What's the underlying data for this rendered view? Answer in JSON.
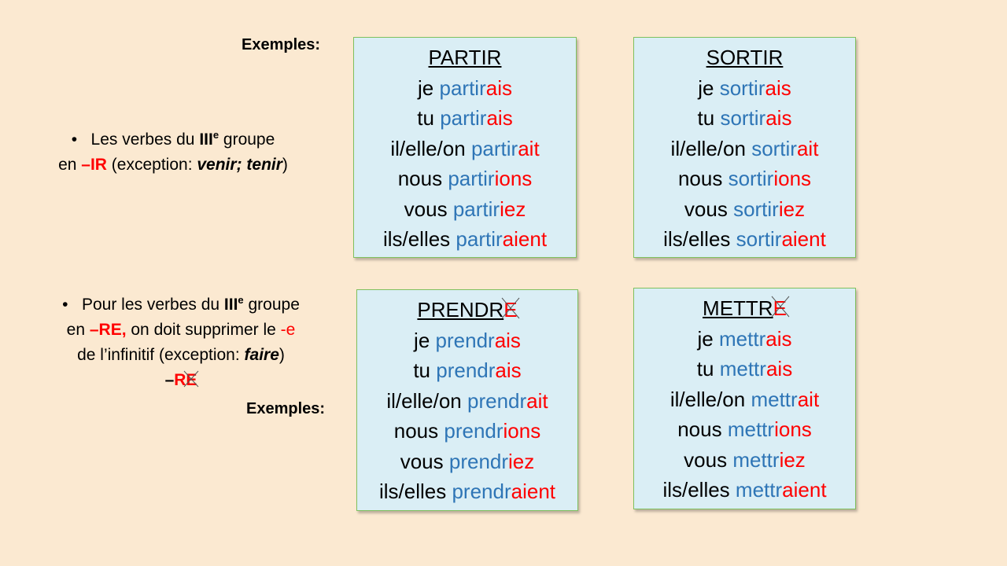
{
  "intro": [
    {
      "runs": [
        "Les verbes du ",
        "III",
        "e",
        " groupe",
        "en ",
        "–IR",
        " (exception: ",
        "venir; tenir",
        ")"
      ]
    },
    {
      "runs": [
        "Pour les verbes du ",
        "III",
        "e",
        " groupe",
        "en ",
        "–RE,",
        " on doit supprimer le ",
        "-e",
        "de l’infinitif (exception: ",
        "faire",
        ")",
        "–",
        "R",
        "E"
      ]
    }
  ],
  "examples_labels": [
    "Exemples:",
    "Exemples:"
  ],
  "boxes": [
    {
      "title": "PARTIR",
      "lines": [
        {
          "pronoun": "je",
          "stem": "partir",
          "ending": "ais"
        },
        {
          "pronoun": "tu",
          "stem": "partir",
          "ending": "ais"
        },
        {
          "pronoun": "il/elle/on",
          "stem": "partir",
          "ending": "ait"
        },
        {
          "pronoun": "nous",
          "stem": "partir",
          "ending": "ions"
        },
        {
          "pronoun": "vous",
          "stem": "partir",
          "ending": "iez"
        },
        {
          "pronoun": "ils/elles",
          "stem": "partir",
          "ending": "aient"
        }
      ]
    },
    {
      "title": "SORTIR",
      "lines": [
        {
          "pronoun": "je",
          "stem": "sortir",
          "ending": "ais"
        },
        {
          "pronoun": "tu",
          "stem": "sortir",
          "ending": "ais"
        },
        {
          "pronoun": "il/elle/on",
          "stem": "sortir",
          "ending": "ait"
        },
        {
          "pronoun": "nous",
          "stem": "sortir",
          "ending": "ions"
        },
        {
          "pronoun": "vous",
          "stem": "sortir",
          "ending": "iez"
        },
        {
          "pronoun": "ils/elles",
          "stem": "sortir",
          "ending": "aient"
        }
      ]
    },
    {
      "title": "PRENDR",
      "removed": "E",
      "lines": [
        {
          "pronoun": "je",
          "stem": "prendr",
          "ending": "ais"
        },
        {
          "pronoun": "tu",
          "stem": "prendr",
          "ending": "ais"
        },
        {
          "pronoun": "il/elle/on",
          "stem": "prendr",
          "ending": "ait"
        },
        {
          "pronoun": "nous",
          "stem": "prendr",
          "ending": "ions"
        },
        {
          "pronoun": "vous",
          "stem": "prendr",
          "ending": "iez"
        },
        {
          "pronoun": "ils/elles",
          "stem": "prendr",
          "ending": "aient"
        }
      ]
    },
    {
      "title": "METTR",
      "removed": "E",
      "lines": [
        {
          "pronoun": "je",
          "stem": "mettr",
          "ending": "ais"
        },
        {
          "pronoun": "tu",
          "stem": "mettr",
          "ending": "ais"
        },
        {
          "pronoun": "il/elle/on",
          "stem": "mettr",
          "ending": "ait"
        },
        {
          "pronoun": "nous",
          "stem": "mettr",
          "ending": "ions"
        },
        {
          "pronoun": "vous",
          "stem": "mettr",
          "ending": "iez"
        },
        {
          "pronoun": "ils/elles",
          "stem": "mettr",
          "ending": "aient"
        }
      ]
    }
  ]
}
